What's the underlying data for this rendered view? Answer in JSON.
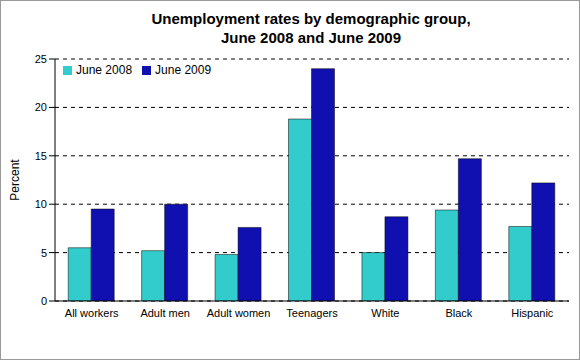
{
  "chart_data": {
    "type": "bar",
    "title": [
      "Unemployment rates by demographic group,",
      "June 2008 and June 2009"
    ],
    "y_label": "Percent",
    "categories": [
      "All workers",
      "Adult men",
      "Adult women",
      "Teenagers",
      "White",
      "Black",
      "Hispanic"
    ],
    "series": [
      {
        "name": "June 2008",
        "color": "#33cccc",
        "values": [
          5.5,
          5.2,
          4.8,
          18.8,
          5.0,
          9.4,
          7.7
        ]
      },
      {
        "name": "June 2009",
        "color": "#1010b0",
        "values": [
          9.5,
          10.0,
          7.6,
          24.0,
          8.7,
          14.7,
          12.2
        ]
      }
    ],
    "ylim": [
      0,
      25
    ],
    "yticks": [
      0,
      5,
      10,
      15,
      20,
      25
    ],
    "grid": true,
    "legend": "upper left"
  }
}
